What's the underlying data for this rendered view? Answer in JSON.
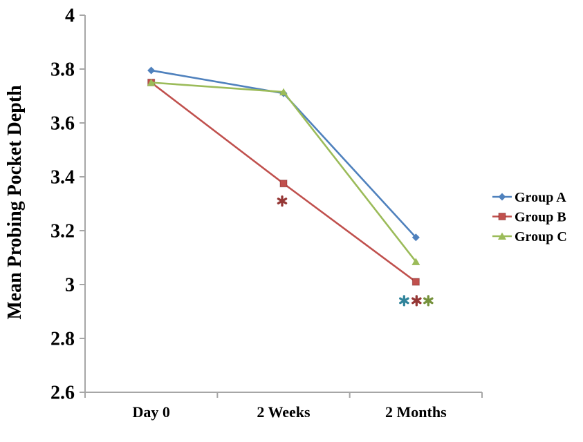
{
  "chart_data": {
    "type": "line",
    "title": "",
    "xlabel": "",
    "ylabel": "Mean Probing Pocket Depth",
    "categories": [
      "Day 0",
      "2 Weeks",
      "2 Months"
    ],
    "series": [
      {
        "name": "Group A",
        "marker": "diamond",
        "color": "#4F81BD",
        "values": [
          3.795,
          3.71,
          3.175
        ]
      },
      {
        "name": "Group B",
        "marker": "square",
        "color": "#C0504D",
        "values": [
          3.75,
          3.375,
          3.01
        ]
      },
      {
        "name": "Group C",
        "marker": "triangle",
        "color": "#9BBB59",
        "values": [
          3.75,
          3.715,
          3.085
        ]
      }
    ],
    "ylim": [
      2.6,
      4.0
    ],
    "yticks": [
      4,
      3.8,
      3.6,
      3.4,
      3.2,
      3,
      2.8,
      2.6
    ],
    "ytick_labels": [
      "4",
      "3.8",
      "3.6",
      "3.4",
      "3.2",
      "3",
      "2.8",
      "2.6"
    ],
    "grid": false,
    "legend_position": "right",
    "axis_color": "#A6A6A6",
    "text_color": "#000000",
    "annotations": [
      {
        "symbol": "*",
        "category": "2 Weeks",
        "dx": -2,
        "value": 3.31,
        "color": "#953735"
      },
      {
        "symbol": "*",
        "category": "2 Months",
        "dx": -17,
        "value": 2.94,
        "color": "#31849B"
      },
      {
        "symbol": "*",
        "category": "2 Months",
        "dx": 1,
        "value": 2.94,
        "color": "#953735"
      },
      {
        "symbol": "*",
        "category": "2 Months",
        "dx": 18,
        "value": 2.94,
        "color": "#76923C"
      }
    ]
  }
}
